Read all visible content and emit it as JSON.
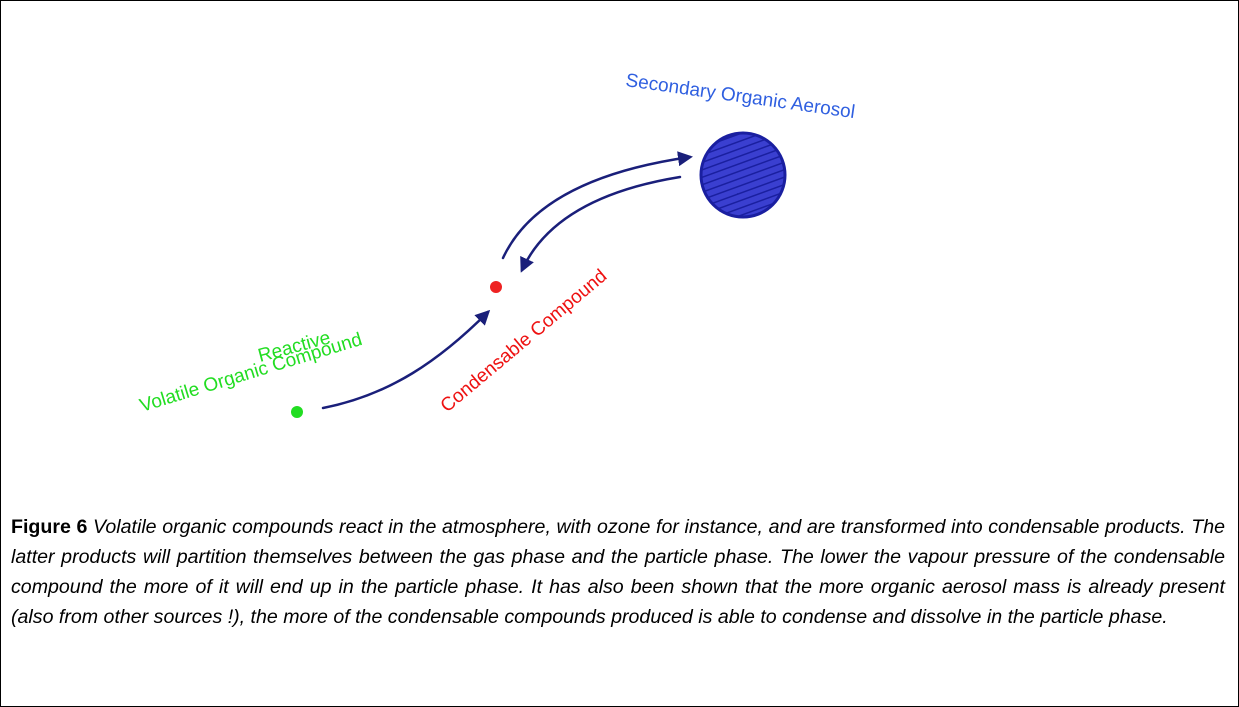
{
  "figure": {
    "labels": {
      "soa": "Secondary Organic Aerosol",
      "condensable": "Condensable  Compound",
      "reactive": "Reactive",
      "voc": "Volatile Organic Compound"
    },
    "caption": {
      "label": "Figure 6",
      "text": "Volatile organic compounds react in the atmosphere, with ozone for instance, and are transformed into condensable products. The latter products will partition themselves between the gas phase and the particle phase. The lower the vapour pressure of the condensable compound the more of it will end up in the particle phase. It has also been shown that the more organic aerosol mass is  already present (also from other sources !), the more of the condensable compounds produced is able to condense and dissolve in the particle phase."
    }
  }
}
